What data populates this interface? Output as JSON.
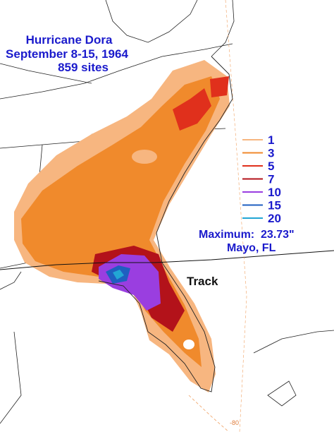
{
  "title": {
    "lines": [
      "Hurricane Dora",
      "September 8-15, 1964",
      "859 sites"
    ]
  },
  "legend": [
    {
      "value": 1,
      "color": "#f7b680"
    },
    {
      "value": 3,
      "color": "#f08a2c"
    },
    {
      "value": 5,
      "color": "#e0301c"
    },
    {
      "value": 7,
      "color": "#b3121a"
    },
    {
      "value": 10,
      "color": "#9a3ee0"
    },
    {
      "value": 15,
      "color": "#1f5fc0"
    },
    {
      "value": 20,
      "color": "#22a6d4"
    }
  ],
  "maximum": {
    "label": "Maximum:  23.73\"",
    "location": "Mayo, FL"
  },
  "track_label": "Track",
  "longitude_label": "-80"
}
